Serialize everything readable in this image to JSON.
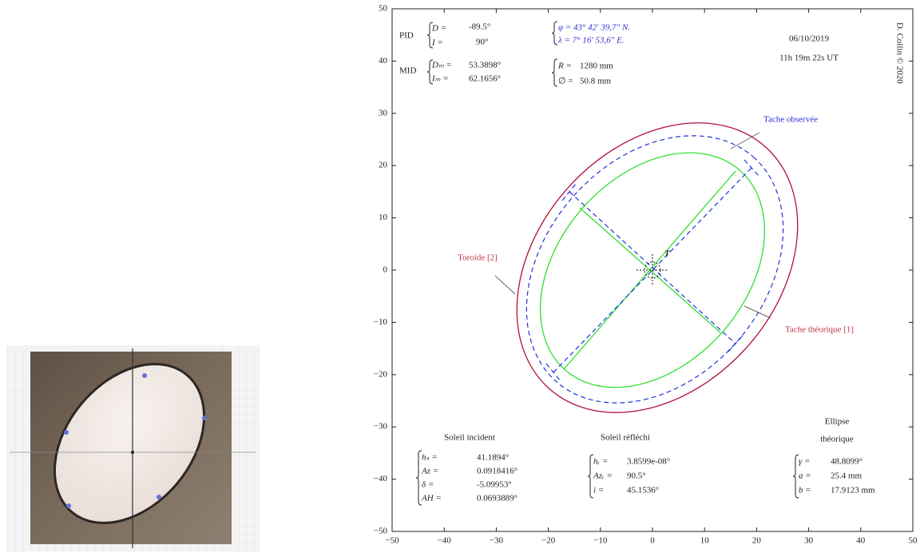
{
  "chart_data": {
    "type": "line",
    "xlim": [
      -50,
      50
    ],
    "ylim": [
      -50,
      50
    ],
    "xticks": [
      {
        "value": -50,
        "label": "−50"
      },
      {
        "value": -40,
        "label": "−40"
      },
      {
        "value": -30,
        "label": "−30"
      },
      {
        "value": -20,
        "label": "−20"
      },
      {
        "value": -10,
        "label": "−10"
      },
      0,
      10,
      20,
      30,
      40,
      50
    ],
    "yticks": [
      {
        "value": -50,
        "label": "−50"
      },
      {
        "value": -40,
        "label": "−40"
      },
      {
        "value": -30,
        "label": "−30"
      },
      {
        "value": -20,
        "label": "−20"
      },
      {
        "value": -10,
        "label": "−10"
      },
      0,
      10,
      20,
      30,
      40,
      50
    ],
    "annotations": {
      "pid": {
        "label": "PID",
        "d": "D =",
        "d_value": "-89.5°",
        "i": "I =",
        "i_value": "90°"
      },
      "mid": {
        "label": "MID",
        "d": "Dₘ =",
        "d_value": "53.3898°",
        "i": "Iₘ =",
        "i_value": "62.1656°"
      },
      "location": {
        "lat": "φ = 43° 42′ 39,7″ N.",
        "lon": "λ = 7° 16′ 53,6″ E."
      },
      "mirror": {
        "r": "R =",
        "r_value": "1280 mm",
        "diam": "∅ =",
        "diam_value": "50.8 mm"
      },
      "date": "06/10/2019",
      "time": "11h 19m 22s UT",
      "credit": "D. Collin © 2020",
      "observed": "Tache observée",
      "toroid": "Toroïde [2]",
      "theoretical": "Tache théorique [1]",
      "target": "T",
      "incident": {
        "title": "Soleil incident",
        "rows": [
          [
            "hₛ =",
            "41.1894°"
          ],
          [
            "Az =",
            "0.0918416°"
          ],
          [
            "δ =",
            "-5.09953°"
          ],
          [
            "AH =",
            "0.0693889°"
          ]
        ]
      },
      "reflected": {
        "title": "Soleil réfléchi",
        "rows": [
          [
            "hᵣ =",
            "3.8599e-08°"
          ],
          [
            "Azᵣ =",
            "90.5°"
          ],
          [
            "i =",
            "45.1536°"
          ]
        ]
      },
      "ellipse": {
        "title": [
          "Ellipse",
          "théorique"
        ],
        "rows": [
          [
            "γ =",
            "48.8099°"
          ],
          [
            "a =",
            "25.4 mm"
          ],
          [
            "b =",
            "17.9123 mm"
          ]
        ]
      }
    }
  }
}
